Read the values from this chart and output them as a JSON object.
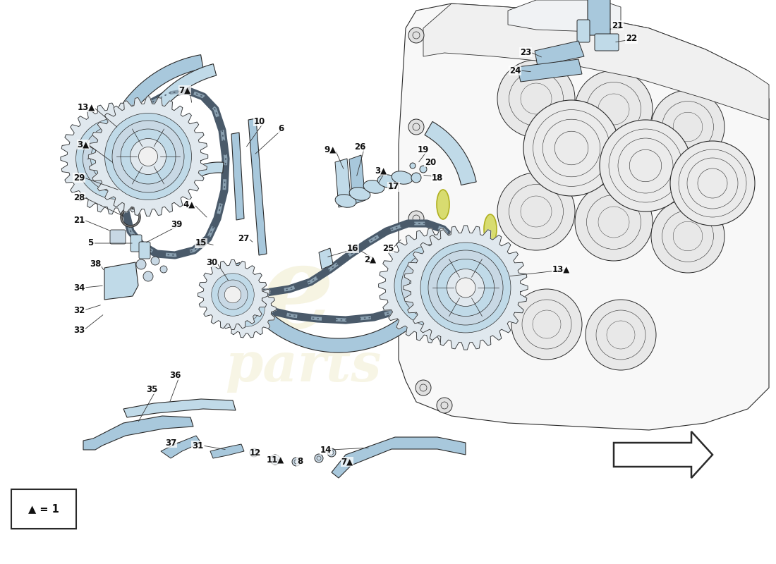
{
  "background_color": "#ffffff",
  "lc": "#2a2a2a",
  "fill_blue": "#a8c8dc",
  "fill_blue_light": "#c0dae8",
  "fill_blue_dark": "#7aafcc",
  "fill_engine_bg": "#f0f0f0",
  "fill_engine_line": "#d0d0d0",
  "fill_gear_bg": "#e0e8ee",
  "fill_gear_mid": "#c8d8e4",
  "chain_dark": "#4a5a6a",
  "chain_light": "#7a8a9a",
  "yellow_green": "#d4dc80",
  "watermark_yellow": "#d8d49a",
  "arrow_dir": "left",
  "legend_symbol": "▲ = 1",
  "label_fontsize": 8.5,
  "label_color": "#111111",
  "label_bold": true
}
